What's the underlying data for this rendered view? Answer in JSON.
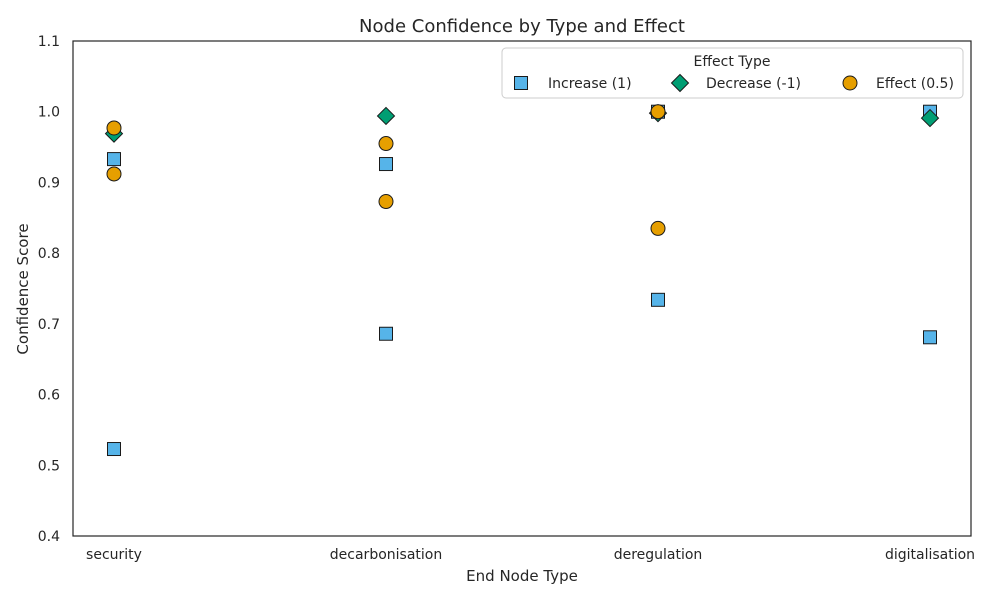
{
  "chart_data": {
    "type": "scatter",
    "title": "Node Confidence by Type and Effect",
    "xlabel": "End Node Type",
    "ylabel": "Confidence Score",
    "categories": [
      "security",
      "decarbonisation",
      "deregulation",
      "digitalisation"
    ],
    "ylim": [
      0.4,
      1.1
    ],
    "yticks": [
      "0.4",
      "0.5",
      "0.6",
      "0.7",
      "0.8",
      "0.9",
      "1.0",
      "1.1"
    ],
    "grid": false,
    "legend": {
      "title": "Effect Type",
      "placement": "top-right"
    },
    "series": [
      {
        "name": "Increase (1)",
        "marker": "square",
        "color": "#56b4e9",
        "points": [
          {
            "x": "security",
            "y": 0.933
          },
          {
            "x": "security",
            "y": 0.523
          },
          {
            "x": "decarbonisation",
            "y": 0.926
          },
          {
            "x": "decarbonisation",
            "y": 0.686
          },
          {
            "x": "deregulation",
            "y": 1.0
          },
          {
            "x": "deregulation",
            "y": 0.734
          },
          {
            "x": "digitalisation",
            "y": 1.0
          },
          {
            "x": "digitalisation",
            "y": 0.681
          }
        ]
      },
      {
        "name": "Decrease (-1)",
        "marker": "diamond",
        "color": "#009e73",
        "points": [
          {
            "x": "security",
            "y": 0.969
          },
          {
            "x": "decarbonisation",
            "y": 0.994
          },
          {
            "x": "deregulation",
            "y": 0.998
          },
          {
            "x": "digitalisation",
            "y": 0.991
          }
        ]
      },
      {
        "name": "Effect (0.5)",
        "marker": "circle",
        "color": "#e69f00",
        "points": [
          {
            "x": "security",
            "y": 0.977
          },
          {
            "x": "security",
            "y": 0.912
          },
          {
            "x": "decarbonisation",
            "y": 0.955
          },
          {
            "x": "decarbonisation",
            "y": 0.873
          },
          {
            "x": "deregulation",
            "y": 1.0
          },
          {
            "x": "deregulation",
            "y": 0.835
          }
        ]
      }
    ]
  }
}
